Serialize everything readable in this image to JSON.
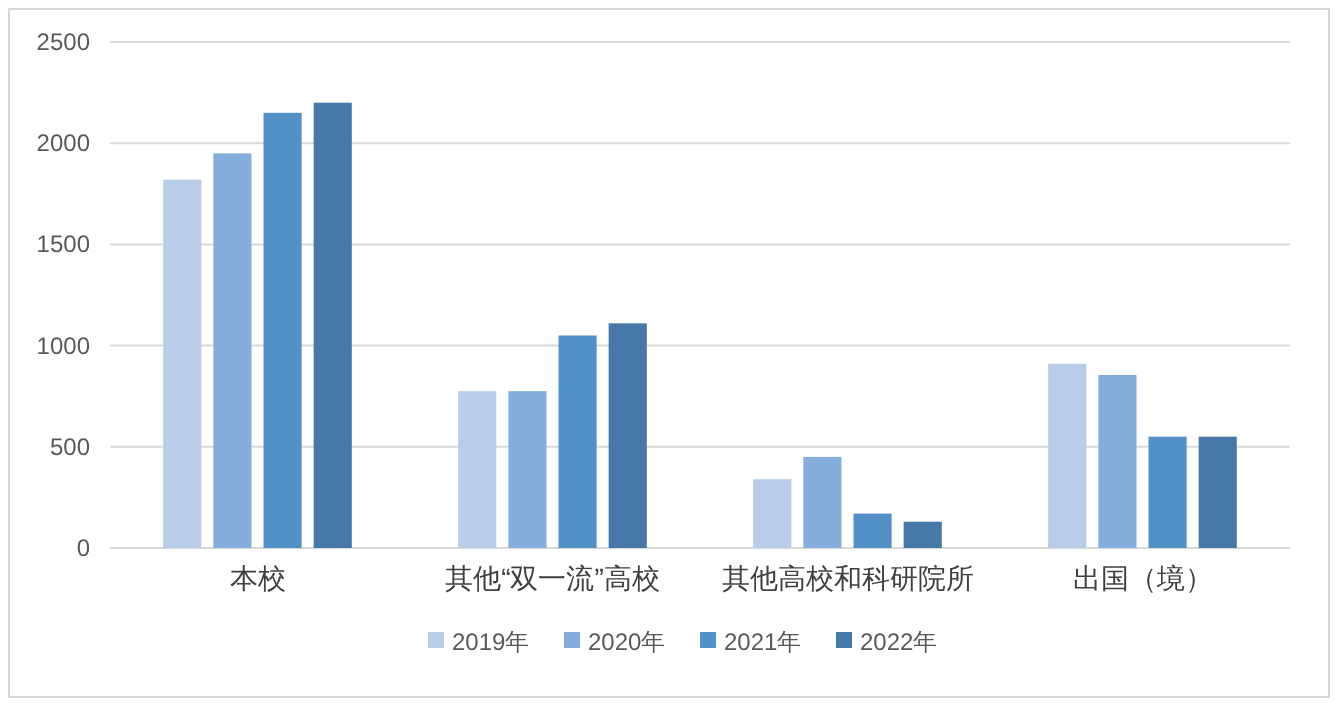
{
  "chart_data": {
    "type": "bar",
    "categories": [
      "本校",
      "其他“双一流”高校",
      "其他高校和科研院所",
      "出国（境）"
    ],
    "series": [
      {
        "name": "2019年",
        "color": "#b7cde8",
        "values": [
          1820,
          775,
          340,
          910
        ]
      },
      {
        "name": "2020年",
        "color": "#85aedc",
        "values": [
          1950,
          775,
          450,
          855
        ]
      },
      {
        "name": "2021年",
        "color": "#5490c8",
        "values": [
          2150,
          1050,
          170,
          550
        ]
      },
      {
        "name": "2022年",
        "color": "#4678a8",
        "values": [
          2200,
          1110,
          130,
          550
        ]
      }
    ],
    "ylim": [
      0,
      2500
    ],
    "yticks": [
      0,
      500,
      1000,
      1500,
      2000,
      2500
    ],
    "grid": "y",
    "legend": "bottom"
  }
}
